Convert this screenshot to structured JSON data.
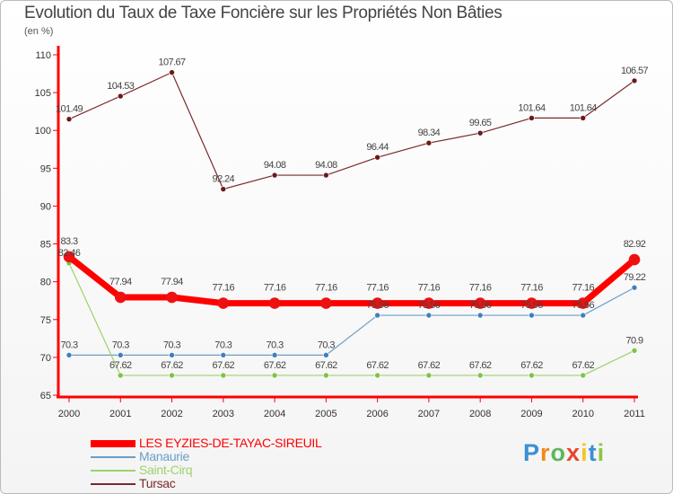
{
  "title": "Evolution du Taux de Taxe Foncière sur les Propriétés Non Bâties",
  "subtitle": "(en %)",
  "chart_data": {
    "type": "line",
    "title": "Evolution du Taux de Taxe Foncière sur les Propriétés Non Bâties",
    "ylabel": "(en %)",
    "xlabel": "",
    "categories": [
      "2000",
      "2001",
      "2002",
      "2003",
      "2004",
      "2005",
      "2006",
      "2007",
      "2008",
      "2009",
      "2010",
      "2011"
    ],
    "ylim": [
      65,
      110
    ],
    "yticks": [
      65,
      70,
      75,
      80,
      85,
      90,
      95,
      100,
      105,
      110
    ],
    "grid": false,
    "legend_position": "bottom-left",
    "series": [
      {
        "name": "Tursac",
        "color": "#7a2a2a",
        "marker": "#6b1a1a",
        "width": 1.2,
        "radius": 3,
        "values": [
          101.49,
          104.53,
          107.67,
          92.24,
          94.08,
          94.08,
          96.44,
          98.34,
          99.65,
          101.64,
          101.64,
          106.57
        ],
        "labels": [
          "101.49",
          "104.53",
          "107.67",
          "92.24",
          "94.08",
          "94.08",
          "96.44",
          "98.34",
          "99.65",
          "101.64",
          "101.64",
          "106.57"
        ]
      },
      {
        "name": "Manaurie",
        "color": "#6a9ec8",
        "marker": "#3f7fbf",
        "width": 1.2,
        "radius": 3,
        "values": [
          70.3,
          70.3,
          70.3,
          70.3,
          70.3,
          70.3,
          75.56,
          75.56,
          75.56,
          75.56,
          75.56,
          79.22
        ],
        "labels": [
          "70.3",
          "70.3",
          "70.3",
          "70.3",
          "70.3",
          "70.3",
          "75.56",
          "75.56",
          "75.56",
          "75.56",
          "75.56",
          "79.22"
        ]
      },
      {
        "name": "Saint-Cirq",
        "color": "#9ed26a",
        "marker": "#7fc24a",
        "width": 1.2,
        "radius": 3,
        "values": [
          82.46,
          67.62,
          67.62,
          67.62,
          67.62,
          67.62,
          67.62,
          67.62,
          67.62,
          67.62,
          67.62,
          70.9
        ],
        "labels": [
          "82.46",
          "67.62",
          "67.62",
          "67.62",
          "67.62",
          "67.62",
          "67.62",
          "67.62",
          "67.62",
          "67.62",
          "67.62",
          "70.9"
        ]
      },
      {
        "name": "LES EYZIES-DE-TAYAC-SIREUIL",
        "color": "#ff0000",
        "marker": "#ee1111",
        "width": 7,
        "radius": 6,
        "values": [
          83.3,
          77.94,
          77.94,
          77.16,
          77.16,
          77.16,
          77.16,
          77.16,
          77.16,
          77.16,
          77.16,
          82.92
        ],
        "labels": [
          "83.3",
          "77.94",
          "77.94",
          "77.16",
          "77.16",
          "77.16",
          "77.16",
          "77.16",
          "77.16",
          "77.16",
          "77.16",
          "82.92"
        ]
      }
    ]
  },
  "legend": [
    {
      "label": "LES EYZIES-DE-TAYAC-SIREUIL",
      "color": "#ff0000"
    },
    {
      "label": "Manaurie",
      "color": "#6a9ec8"
    },
    {
      "label": "Saint-Cirq",
      "color": "#9ed26a"
    },
    {
      "label": "Tursac",
      "color": "#7a2a2a"
    }
  ],
  "logo": {
    "letters": [
      "P",
      "r",
      "o",
      "x",
      "i",
      "t",
      "i"
    ],
    "colors": [
      "#3b8fd4",
      "#f08a1c",
      "#5cb85c",
      "#e8452c",
      "#f3c623",
      "#3b8fd4",
      "#8cc63f"
    ]
  }
}
